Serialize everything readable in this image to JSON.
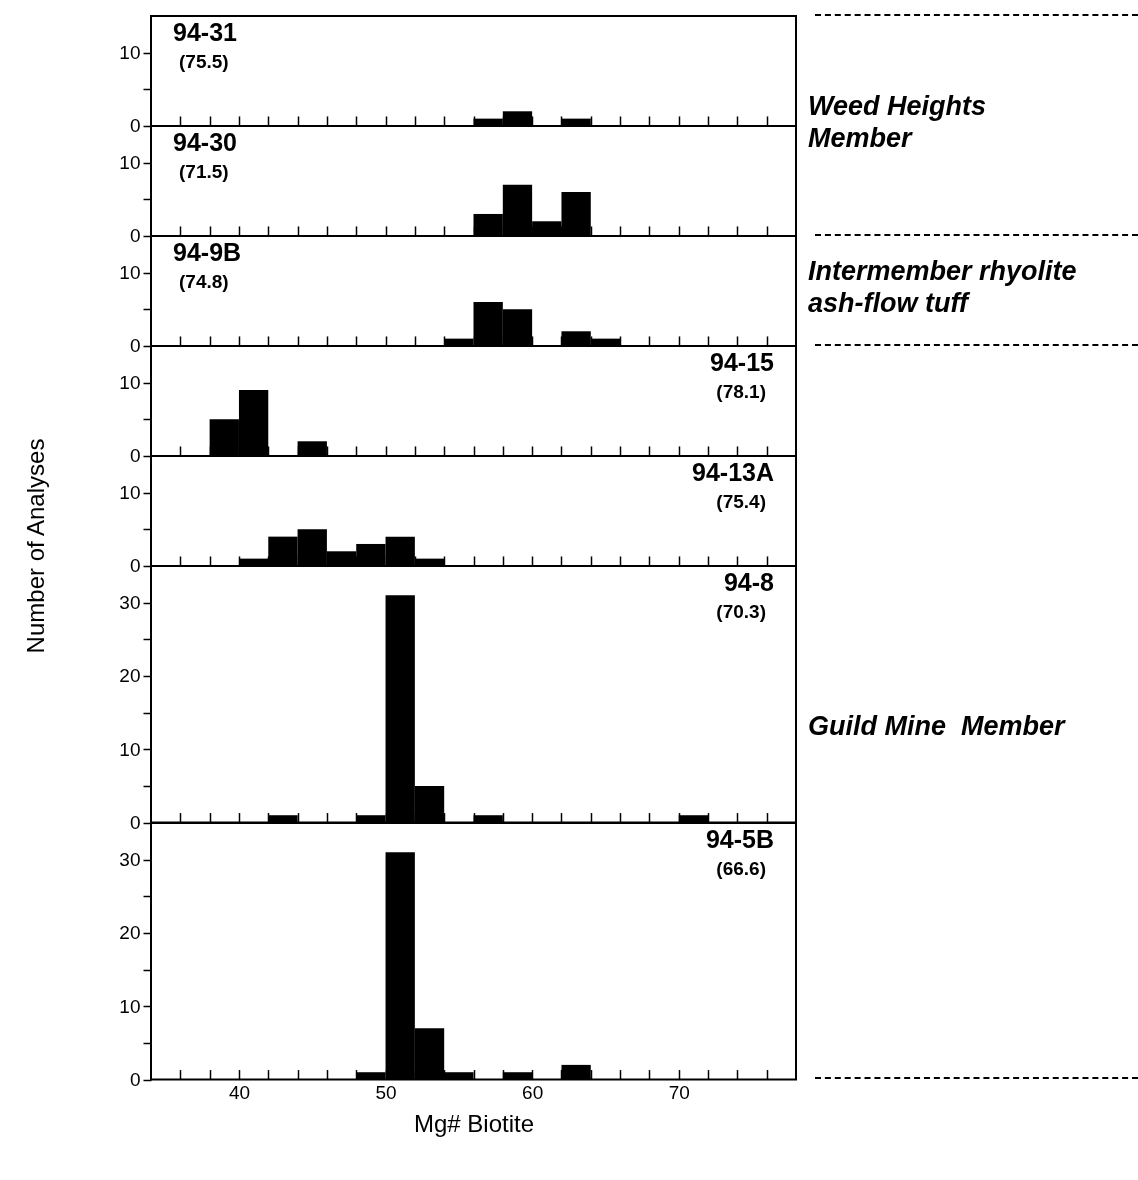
{
  "chart_data": [
    {
      "type": "histogram",
      "title": "94-31",
      "subtitle": "(75.5)",
      "color": "#000000",
      "bins": [
        36,
        38,
        40,
        42,
        44,
        46,
        48,
        50,
        52,
        54,
        56,
        58,
        60,
        62,
        64,
        66,
        68,
        70,
        72,
        74,
        76
      ],
      "values": [
        0,
        0,
        0,
        0,
        0,
        0,
        0,
        0,
        0,
        0,
        1,
        2,
        0,
        1,
        0,
        0,
        0,
        0,
        0,
        0
      ],
      "xlim": [
        34,
        78
      ],
      "xticks": [
        {
          "value": 36,
          "label": null
        },
        {
          "value": 38,
          "label": null
        },
        {
          "value": 40,
          "label": null
        },
        {
          "value": 42,
          "label": null
        },
        {
          "value": 44,
          "label": null
        },
        {
          "value": 46,
          "label": null
        },
        {
          "value": 48,
          "label": null
        },
        {
          "value": 50,
          "label": null
        },
        {
          "value": 52,
          "label": null
        },
        {
          "value": 54,
          "label": null
        },
        {
          "value": 56,
          "label": null
        },
        {
          "value": 58,
          "label": null
        },
        {
          "value": 60,
          "label": null
        },
        {
          "value": 62,
          "label": null
        },
        {
          "value": 64,
          "label": null
        },
        {
          "value": 66,
          "label": null
        },
        {
          "value": 68,
          "label": null
        },
        {
          "value": 70,
          "label": null
        },
        {
          "value": 72,
          "label": null
        },
        {
          "value": 74,
          "label": null
        },
        {
          "value": 76,
          "label": null
        }
      ],
      "ylim": [
        0,
        15
      ],
      "yticks": [
        0,
        {
          "value": 5,
          "label": null
        },
        10
      ],
      "tick_labels": "y",
      "annotations": [
        "Weed Heights Member"
      ]
    },
    {
      "type": "histogram",
      "title": "94-30",
      "subtitle": "(71.5)",
      "color": "#000000",
      "bins": [
        36,
        38,
        40,
        42,
        44,
        46,
        48,
        50,
        52,
        54,
        56,
        58,
        60,
        62,
        64,
        66,
        68,
        70,
        72,
        74,
        76
      ],
      "values": [
        0,
        0,
        0,
        0,
        0,
        0,
        0,
        0,
        0,
        0,
        3,
        7,
        2,
        6,
        0,
        0,
        0,
        0,
        0,
        0
      ],
      "xlim": [
        34,
        78
      ],
      "xticks": [
        {
          "value": 36,
          "label": null
        },
        {
          "value": 38,
          "label": null
        },
        {
          "value": 40,
          "label": null
        },
        {
          "value": 42,
          "label": null
        },
        {
          "value": 44,
          "label": null
        },
        {
          "value": 46,
          "label": null
        },
        {
          "value": 48,
          "label": null
        },
        {
          "value": 50,
          "label": null
        },
        {
          "value": 52,
          "label": null
        },
        {
          "value": 54,
          "label": null
        },
        {
          "value": 56,
          "label": null
        },
        {
          "value": 58,
          "label": null
        },
        {
          "value": 60,
          "label": null
        },
        {
          "value": 62,
          "label": null
        },
        {
          "value": 64,
          "label": null
        },
        {
          "value": 66,
          "label": null
        },
        {
          "value": 68,
          "label": null
        },
        {
          "value": 70,
          "label": null
        },
        {
          "value": 72,
          "label": null
        },
        {
          "value": 74,
          "label": null
        },
        {
          "value": 76,
          "label": null
        }
      ],
      "ylim": [
        0,
        15
      ],
      "yticks": [
        0,
        {
          "value": 5,
          "label": null
        },
        10
      ],
      "tick_labels": "y"
    },
    {
      "type": "histogram",
      "title": "94-9B",
      "subtitle": "(74.8)",
      "color": "#000000",
      "bins": [
        36,
        38,
        40,
        42,
        44,
        46,
        48,
        50,
        52,
        54,
        56,
        58,
        60,
        62,
        64,
        66,
        68,
        70,
        72,
        74,
        76
      ],
      "values": [
        0,
        0,
        0,
        0,
        0,
        0,
        0,
        0,
        0,
        1,
        6,
        5,
        0,
        2,
        1,
        0,
        0,
        0,
        0,
        0
      ],
      "xlim": [
        34,
        78
      ],
      "xticks": [
        {
          "value": 36,
          "label": null
        },
        {
          "value": 38,
          "label": null
        },
        {
          "value": 40,
          "label": null
        },
        {
          "value": 42,
          "label": null
        },
        {
          "value": 44,
          "label": null
        },
        {
          "value": 46,
          "label": null
        },
        {
          "value": 48,
          "label": null
        },
        {
          "value": 50,
          "label": null
        },
        {
          "value": 52,
          "label": null
        },
        {
          "value": 54,
          "label": null
        },
        {
          "value": 56,
          "label": null
        },
        {
          "value": 58,
          "label": null
        },
        {
          "value": 60,
          "label": null
        },
        {
          "value": 62,
          "label": null
        },
        {
          "value": 64,
          "label": null
        },
        {
          "value": 66,
          "label": null
        },
        {
          "value": 68,
          "label": null
        },
        {
          "value": 70,
          "label": null
        },
        {
          "value": 72,
          "label": null
        },
        {
          "value": 74,
          "label": null
        },
        {
          "value": 76,
          "label": null
        }
      ],
      "ylim": [
        0,
        15
      ],
      "yticks": [
        0,
        {
          "value": 5,
          "label": null
        },
        10
      ],
      "tick_labels": "y",
      "annotations": [
        "Intermember rhyolite ash-flow tuff"
      ]
    },
    {
      "type": "histogram",
      "title": "94-15",
      "subtitle": "(78.1)",
      "color": "#000000",
      "bins": [
        36,
        38,
        40,
        42,
        44,
        46,
        48,
        50,
        52,
        54,
        56,
        58,
        60,
        62,
        64,
        66,
        68,
        70,
        72,
        74,
        76
      ],
      "values": [
        0,
        5,
        9,
        0,
        2,
        0,
        0,
        0,
        0,
        0,
        0,
        0,
        0,
        0,
        0,
        0,
        0,
        0,
        0,
        0
      ],
      "xlim": [
        34,
        78
      ],
      "xticks": [
        {
          "value": 36,
          "label": null
        },
        {
          "value": 38,
          "label": null
        },
        {
          "value": 40,
          "label": null
        },
        {
          "value": 42,
          "label": null
        },
        {
          "value": 44,
          "label": null
        },
        {
          "value": 46,
          "label": null
        },
        {
          "value": 48,
          "label": null
        },
        {
          "value": 50,
          "label": null
        },
        {
          "value": 52,
          "label": null
        },
        {
          "value": 54,
          "label": null
        },
        {
          "value": 56,
          "label": null
        },
        {
          "value": 58,
          "label": null
        },
        {
          "value": 60,
          "label": null
        },
        {
          "value": 62,
          "label": null
        },
        {
          "value": 64,
          "label": null
        },
        {
          "value": 66,
          "label": null
        },
        {
          "value": 68,
          "label": null
        },
        {
          "value": 70,
          "label": null
        },
        {
          "value": 72,
          "label": null
        },
        {
          "value": 74,
          "label": null
        },
        {
          "value": 76,
          "label": null
        }
      ],
      "ylim": [
        0,
        15
      ],
      "yticks": [
        0,
        {
          "value": 5,
          "label": null
        },
        10
      ],
      "tick_labels": "y",
      "ylabel": "Number of Analyses"
    },
    {
      "type": "histogram",
      "title": "94-13A",
      "subtitle": "(75.4)",
      "color": "#000000",
      "bins": [
        36,
        38,
        40,
        42,
        44,
        46,
        48,
        50,
        52,
        54,
        56,
        58,
        60,
        62,
        64,
        66,
        68,
        70,
        72,
        74,
        76
      ],
      "values": [
        0,
        0,
        1,
        4,
        5,
        2,
        3,
        4,
        1,
        0,
        0,
        0,
        0,
        0,
        0,
        0,
        0,
        0,
        0,
        0
      ],
      "xlim": [
        34,
        78
      ],
      "xticks": [
        {
          "value": 36,
          "label": null
        },
        {
          "value": 38,
          "label": null
        },
        {
          "value": 40,
          "label": null
        },
        {
          "value": 42,
          "label": null
        },
        {
          "value": 44,
          "label": null
        },
        {
          "value": 46,
          "label": null
        },
        {
          "value": 48,
          "label": null
        },
        {
          "value": 50,
          "label": null
        },
        {
          "value": 52,
          "label": null
        },
        {
          "value": 54,
          "label": null
        },
        {
          "value": 56,
          "label": null
        },
        {
          "value": 58,
          "label": null
        },
        {
          "value": 60,
          "label": null
        },
        {
          "value": 62,
          "label": null
        },
        {
          "value": 64,
          "label": null
        },
        {
          "value": 66,
          "label": null
        },
        {
          "value": 68,
          "label": null
        },
        {
          "value": 70,
          "label": null
        },
        {
          "value": 72,
          "label": null
        },
        {
          "value": 74,
          "label": null
        },
        {
          "value": 76,
          "label": null
        }
      ],
      "ylim": [
        0,
        15
      ],
      "yticks": [
        0,
        {
          "value": 5,
          "label": null
        },
        10
      ],
      "tick_labels": "y"
    },
    {
      "type": "histogram",
      "title": "94-8",
      "subtitle": "(70.3)",
      "color": "#000000",
      "bins": [
        36,
        38,
        40,
        42,
        44,
        46,
        48,
        50,
        52,
        54,
        56,
        58,
        60,
        62,
        64,
        66,
        68,
        70,
        72,
        74,
        76
      ],
      "values": [
        0,
        0,
        0,
        1,
        0,
        0,
        1,
        31,
        5,
        0,
        1,
        0,
        0,
        0,
        0,
        0,
        0,
        1,
        0,
        0
      ],
      "xlim": [
        34,
        78
      ],
      "xticks": [
        {
          "value": 36,
          "label": null
        },
        {
          "value": 38,
          "label": null
        },
        {
          "value": 40,
          "label": null
        },
        {
          "value": 42,
          "label": null
        },
        {
          "value": 44,
          "label": null
        },
        {
          "value": 46,
          "label": null
        },
        {
          "value": 48,
          "label": null
        },
        {
          "value": 50,
          "label": null
        },
        {
          "value": 52,
          "label": null
        },
        {
          "value": 54,
          "label": null
        },
        {
          "value": 56,
          "label": null
        },
        {
          "value": 58,
          "label": null
        },
        {
          "value": 60,
          "label": null
        },
        {
          "value": 62,
          "label": null
        },
        {
          "value": 64,
          "label": null
        },
        {
          "value": 66,
          "label": null
        },
        {
          "value": 68,
          "label": null
        },
        {
          "value": 70,
          "label": null
        },
        {
          "value": 72,
          "label": null
        },
        {
          "value": 74,
          "label": null
        },
        {
          "value": 76,
          "label": null
        }
      ],
      "ylim": [
        0,
        35
      ],
      "yticks": [
        0,
        {
          "value": 5,
          "label": null
        },
        10,
        {
          "value": 15,
          "label": null
        },
        20,
        {
          "value": 25,
          "label": null
        },
        30
      ],
      "tick_labels": "y",
      "annotations": [
        "Guild Mine  Member"
      ]
    },
    {
      "type": "histogram",
      "title": "94-5B",
      "subtitle": "(66.6)",
      "color": "#000000",
      "bins": [
        36,
        38,
        40,
        42,
        44,
        46,
        48,
        50,
        52,
        54,
        56,
        58,
        60,
        62,
        64,
        66,
        68,
        70,
        72,
        74,
        76
      ],
      "values": [
        0,
        0,
        0,
        0,
        0,
        0,
        1,
        31,
        7,
        1,
        0,
        1,
        0,
        2,
        0,
        0,
        0,
        0,
        0,
        0
      ],
      "xlim": [
        34,
        78
      ],
      "xticks": [
        {
          "value": 36,
          "label": null
        },
        {
          "value": 38,
          "label": null
        },
        {
          "value": 40,
          "label": "40"
        },
        {
          "value": 42,
          "label": null
        },
        {
          "value": 44,
          "label": null
        },
        {
          "value": 46,
          "label": null
        },
        {
          "value": 48,
          "label": null
        },
        {
          "value": 50,
          "label": "50"
        },
        {
          "value": 52,
          "label": null
        },
        {
          "value": 54,
          "label": null
        },
        {
          "value": 56,
          "label": null
        },
        {
          "value": 58,
          "label": null
        },
        {
          "value": 60,
          "label": "60"
        },
        {
          "value": 62,
          "label": null
        },
        {
          "value": 64,
          "label": null
        },
        {
          "value": 66,
          "label": null
        },
        {
          "value": 68,
          "label": null
        },
        {
          "value": 70,
          "label": "70"
        },
        {
          "value": 72,
          "label": null
        },
        {
          "value": 74,
          "label": null
        },
        {
          "value": 76,
          "label": null
        }
      ],
      "ylim": [
        0,
        35
      ],
      "yticks": [
        0,
        {
          "value": 5,
          "label": null
        },
        10,
        {
          "value": 15,
          "label": null
        },
        20,
        {
          "value": 25,
          "label": null
        },
        30
      ],
      "xlabel": "Mg# Biotite"
    }
  ]
}
